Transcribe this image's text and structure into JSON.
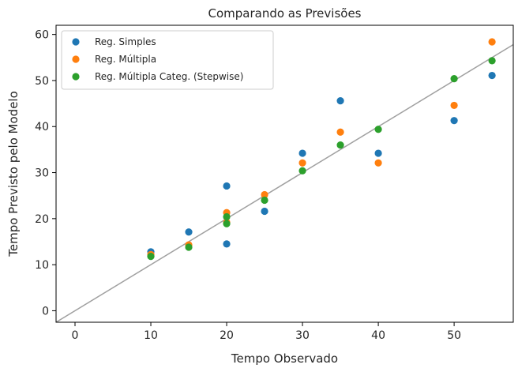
{
  "chart_data": {
    "type": "scatter",
    "title": "Comparando as Previsões",
    "xlabel": "Tempo Observado",
    "ylabel": "Tempo Previsto pelo Modelo",
    "xlim": [
      -2.5,
      57.8
    ],
    "ylim": [
      -2.5,
      62
    ],
    "xticks": [
      0,
      10,
      20,
      30,
      40,
      50
    ],
    "yticks": [
      0,
      10,
      20,
      30,
      40,
      50,
      60
    ],
    "grid": false,
    "legend": "upper-left",
    "reference_line": {
      "type": "identity",
      "color": "#a0a0a0"
    },
    "series": [
      {
        "name": "Reg. Simples",
        "color": "#1f77b4",
        "x": [
          10,
          15,
          20,
          20,
          25,
          30,
          35,
          40,
          50,
          55
        ],
        "y": [
          12.8,
          17.1,
          27.1,
          14.5,
          21.6,
          34.2,
          45.6,
          34.2,
          41.3,
          51.1
        ]
      },
      {
        "name": "Reg. Múltipla",
        "color": "#ff7f0e",
        "x": [
          10,
          15,
          20,
          20,
          25,
          30,
          35,
          40,
          50,
          55
        ],
        "y": [
          12.2,
          14.3,
          21.3,
          19.2,
          25.2,
          32.1,
          38.8,
          32.1,
          44.6,
          58.4
        ]
      },
      {
        "name": "Reg. Múltipla Categ. (Stepwise)",
        "color": "#2ca02c",
        "x": [
          10,
          15,
          20,
          20,
          25,
          30,
          35,
          40,
          50,
          55
        ],
        "y": [
          11.8,
          13.8,
          20.4,
          18.9,
          24.0,
          30.4,
          36.0,
          39.4,
          50.4,
          54.3
        ]
      }
    ]
  }
}
